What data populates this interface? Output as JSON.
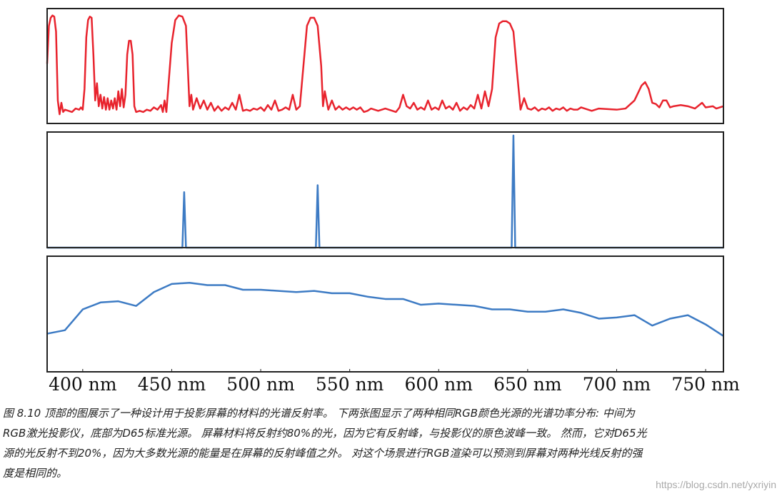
{
  "chart_data": [
    {
      "type": "line",
      "color": "#e8232d",
      "xlim": [
        380,
        760
      ],
      "ylim": [
        0,
        1
      ],
      "x": [
        380,
        381,
        382,
        383,
        384,
        385,
        386,
        387,
        388,
        389,
        390,
        392,
        394,
        396,
        398,
        399,
        400,
        401,
        402,
        403,
        404,
        405,
        406,
        407,
        408,
        409,
        410,
        411,
        412,
        413,
        414,
        415,
        416,
        417,
        418,
        419,
        420,
        421,
        422,
        423,
        424,
        425,
        426,
        427,
        428,
        429,
        430,
        432,
        434,
        436,
        438,
        440,
        442,
        444,
        445,
        446,
        447,
        448,
        450,
        452,
        454,
        456,
        458,
        459,
        460,
        461,
        462,
        464,
        466,
        468,
        470,
        472,
        474,
        476,
        478,
        480,
        482,
        484,
        486,
        488,
        490,
        492,
        494,
        496,
        498,
        500,
        502,
        504,
        506,
        508,
        510,
        512,
        514,
        516,
        518,
        520,
        522,
        524,
        526,
        528,
        530,
        532,
        534,
        535,
        536,
        538,
        540,
        542,
        544,
        546,
        548,
        550,
        552,
        554,
        556,
        558,
        560,
        562,
        564,
        566,
        568,
        570,
        572,
        576,
        578,
        580,
        582,
        584,
        586,
        588,
        590,
        592,
        594,
        596,
        598,
        600,
        602,
        604,
        606,
        608,
        610,
        612,
        614,
        616,
        618,
        620,
        622,
        624,
        626,
        628,
        630,
        632,
        634,
        636,
        638,
        640,
        642,
        644,
        646,
        648,
        650,
        652,
        654,
        656,
        658,
        660,
        662,
        664,
        666,
        668,
        670,
        672,
        674,
        676,
        678,
        680,
        682,
        684,
        686,
        688,
        690,
        700,
        705,
        710,
        714,
        716,
        718,
        720,
        722,
        724,
        726,
        728,
        730,
        732,
        736,
        740,
        744,
        748,
        750,
        754,
        756,
        760
      ],
      "values": [
        0.52,
        0.85,
        0.92,
        0.94,
        0.93,
        0.8,
        0.2,
        0.08,
        0.18,
        0.1,
        0.12,
        0.11,
        0.1,
        0.13,
        0.12,
        0.14,
        0.12,
        0.3,
        0.75,
        0.9,
        0.93,
        0.92,
        0.6,
        0.2,
        0.35,
        0.15,
        0.25,
        0.13,
        0.23,
        0.12,
        0.22,
        0.12,
        0.2,
        0.13,
        0.22,
        0.12,
        0.28,
        0.15,
        0.3,
        0.14,
        0.25,
        0.6,
        0.72,
        0.72,
        0.6,
        0.15,
        0.1,
        0.11,
        0.1,
        0.12,
        0.11,
        0.14,
        0.12,
        0.16,
        0.1,
        0.2,
        0.1,
        0.3,
        0.7,
        0.9,
        0.94,
        0.93,
        0.85,
        0.5,
        0.15,
        0.25,
        0.12,
        0.22,
        0.13,
        0.2,
        0.12,
        0.18,
        0.11,
        0.15,
        0.11,
        0.14,
        0.12,
        0.18,
        0.12,
        0.25,
        0.11,
        0.12,
        0.11,
        0.13,
        0.12,
        0.14,
        0.11,
        0.16,
        0.12,
        0.2,
        0.11,
        0.12,
        0.14,
        0.12,
        0.25,
        0.12,
        0.15,
        0.5,
        0.85,
        0.92,
        0.92,
        0.85,
        0.5,
        0.15,
        0.28,
        0.12,
        0.2,
        0.12,
        0.15,
        0.12,
        0.14,
        0.12,
        0.14,
        0.12,
        0.14,
        0.1,
        0.11,
        0.13,
        0.12,
        0.11,
        0.12,
        0.13,
        0.12,
        0.1,
        0.14,
        0.25,
        0.15,
        0.13,
        0.18,
        0.12,
        0.14,
        0.12,
        0.2,
        0.12,
        0.14,
        0.12,
        0.2,
        0.13,
        0.15,
        0.12,
        0.18,
        0.11,
        0.14,
        0.12,
        0.16,
        0.13,
        0.25,
        0.13,
        0.28,
        0.15,
        0.3,
        0.75,
        0.87,
        0.89,
        0.89,
        0.87,
        0.8,
        0.45,
        0.12,
        0.22,
        0.13,
        0.12,
        0.14,
        0.11,
        0.13,
        0.12,
        0.14,
        0.11,
        0.13,
        0.12,
        0.14,
        0.11,
        0.13,
        0.12,
        0.12,
        0.14,
        0.13,
        0.12,
        0.11,
        0.12,
        0.13,
        0.12,
        0.13,
        0.2,
        0.33,
        0.36,
        0.3,
        0.18,
        0.17,
        0.14,
        0.2,
        0.2,
        0.14,
        0.15,
        0.16,
        0.15,
        0.13,
        0.18,
        0.14,
        0.15,
        0.13,
        0.15
      ]
    },
    {
      "type": "line",
      "color": "#3d7bc4",
      "xlim": [
        380,
        760
      ],
      "ylim": [
        0,
        1
      ],
      "x": [
        380,
        456,
        457,
        458,
        531,
        532,
        533,
        641,
        642,
        643,
        760
      ],
      "values": [
        0,
        0,
        0.48,
        0,
        0,
        0.54,
        0,
        0,
        0.97,
        0,
        0
      ]
    },
    {
      "type": "line",
      "color": "#3d7bc4",
      "xlim": [
        380,
        760
      ],
      "ylim": [
        0,
        1
      ],
      "x": [
        380,
        390,
        400,
        410,
        420,
        430,
        440,
        450,
        460,
        470,
        480,
        490,
        500,
        510,
        520,
        530,
        540,
        550,
        560,
        570,
        580,
        590,
        600,
        610,
        620,
        630,
        640,
        650,
        660,
        670,
        680,
        690,
        700,
        710,
        720,
        730,
        740,
        750,
        760
      ],
      "values": [
        0.33,
        0.36,
        0.54,
        0.6,
        0.61,
        0.57,
        0.69,
        0.76,
        0.77,
        0.75,
        0.75,
        0.71,
        0.71,
        0.7,
        0.69,
        0.7,
        0.68,
        0.68,
        0.65,
        0.63,
        0.63,
        0.58,
        0.59,
        0.58,
        0.57,
        0.54,
        0.54,
        0.52,
        0.52,
        0.54,
        0.51,
        0.46,
        0.47,
        0.49,
        0.4,
        0.46,
        0.49,
        0.41,
        0.31
      ],
      "xticks": [
        {
          "value": 400,
          "label": "400 nm"
        },
        {
          "value": 450,
          "label": "450 nm"
        },
        {
          "value": 500,
          "label": "500 nm"
        },
        {
          "value": 550,
          "label": "550 nm"
        },
        {
          "value": 600,
          "label": "600 nm"
        },
        {
          "value": 650,
          "label": "650 nm"
        },
        {
          "value": 700,
          "label": "700 nm"
        },
        {
          "value": 750,
          "label": "750 nm"
        }
      ]
    }
  ],
  "caption_lines": [
    "图 8.10   顶部的图展示了一种设计用于投影屏幕的材料的光谱反射率。 下两张图显示了两种相同RGB颜色光源的光谱功率分布: 中间为",
    "RGB激光投影仪，底部为D65标准光源。 屏幕材料将反射约80%的光，因为它有反射峰，与投影仪的原色波峰一致。 然而，它对D65光",
    "源的光反射不到20%，因为大多数光源的能量是在屏幕的反射峰值之外。 对这个场景进行RGB渲染可以预测到屏幕对两种光线反射的强",
    "度是相同的。"
  ],
  "watermark": "https://blog.csdn.net/yxriyin"
}
